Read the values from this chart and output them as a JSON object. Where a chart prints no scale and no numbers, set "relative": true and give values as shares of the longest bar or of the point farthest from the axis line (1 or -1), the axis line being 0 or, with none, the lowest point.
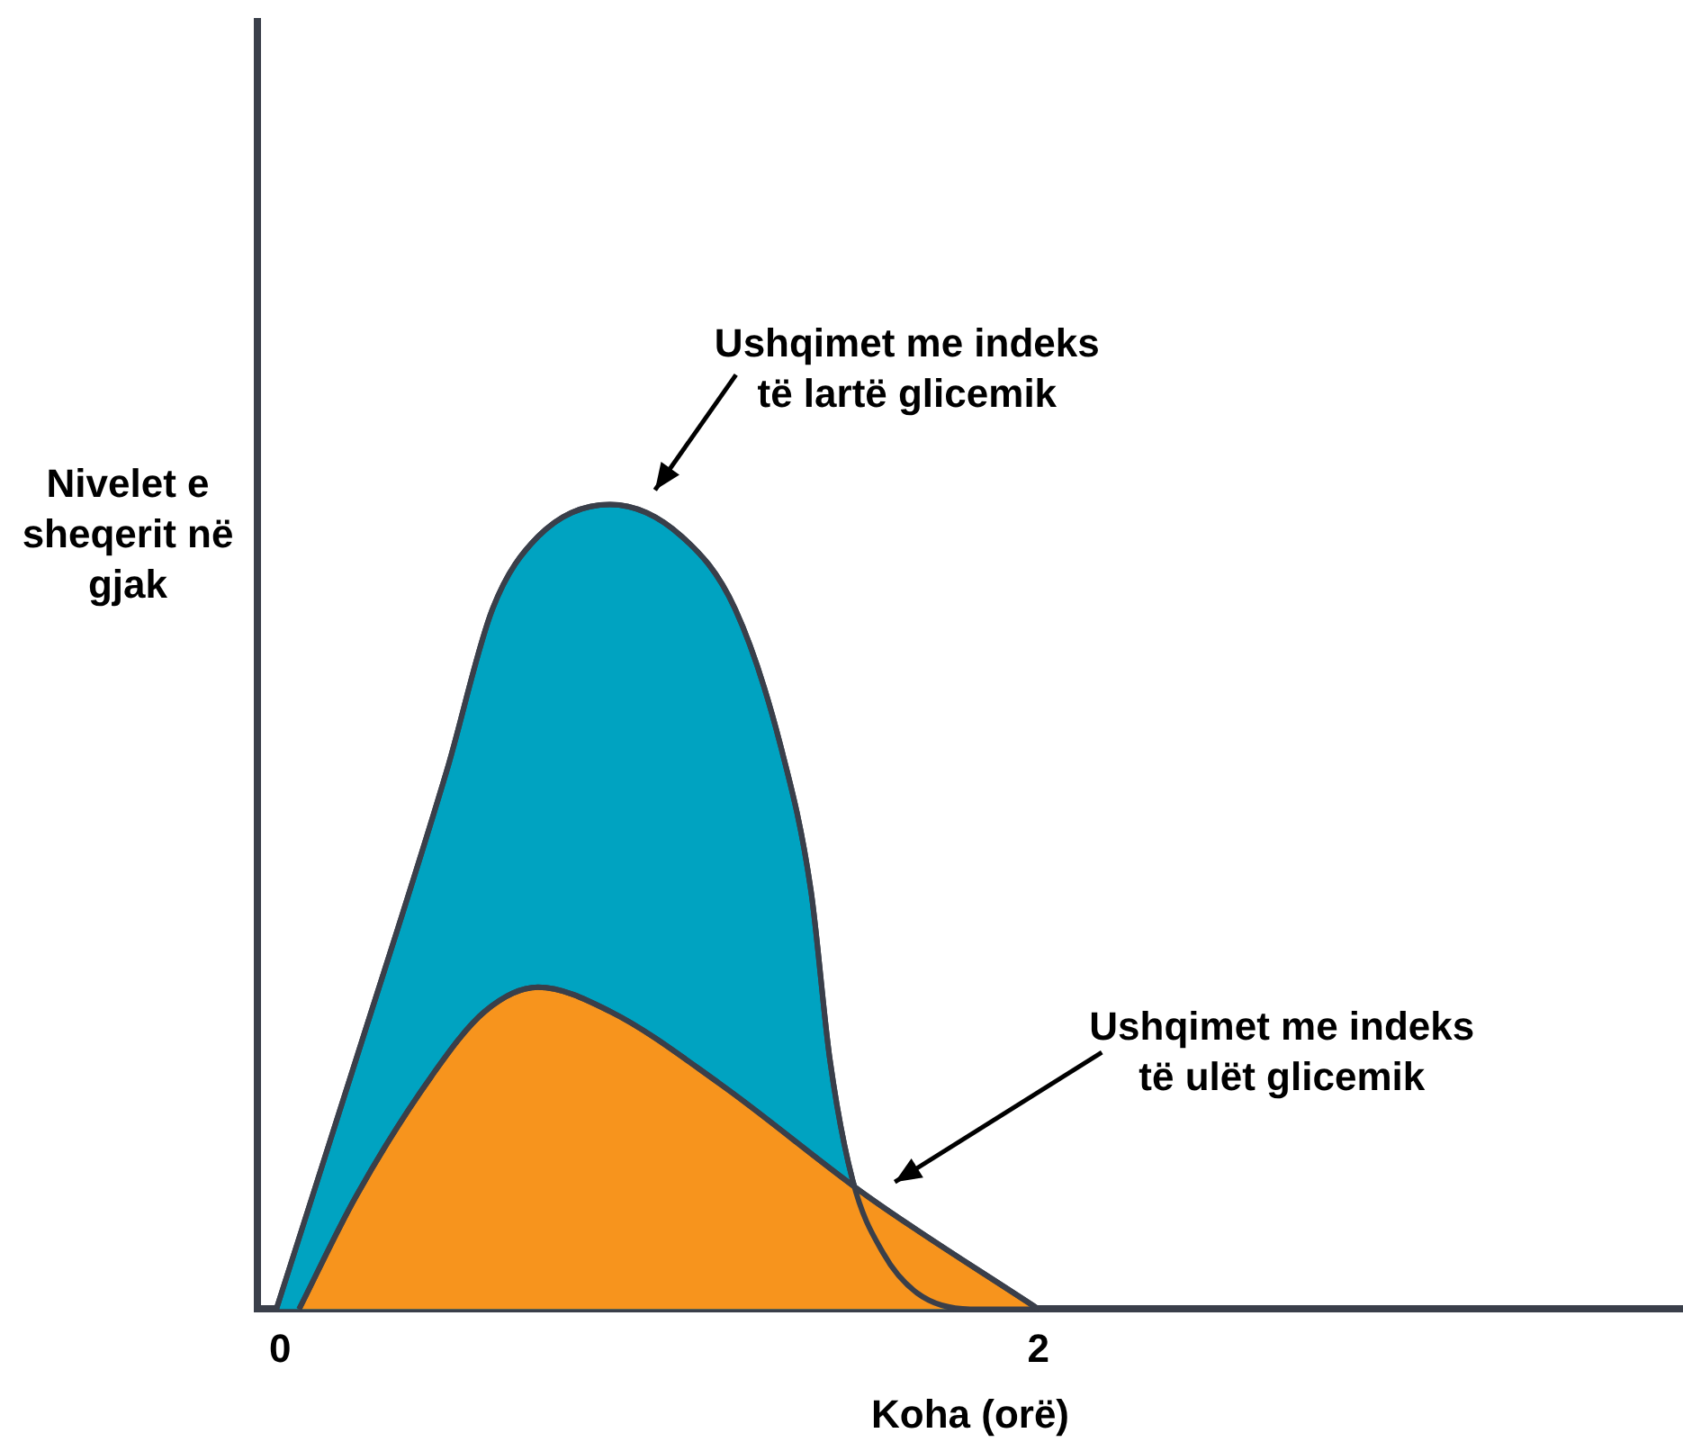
{
  "chart_data": {
    "type": "area",
    "xlabel": "Koha (orë)",
    "ylabel": "Nivelet e sheqerit në gjak",
    "relative": true,
    "xlim": [
      -0.06,
      3.7
    ],
    "xticks": [
      0,
      2
    ],
    "grid": false,
    "legend": false,
    "marker": "none",
    "series": [
      {
        "name": "Ushqimet me indeks të lartë glicemik",
        "color": "#00a3c1",
        "x": [
          -0.01,
          0.2,
          0.44,
          0.56,
          0.68,
          0.87,
          1.06,
          1.2,
          1.32,
          1.4,
          1.45,
          1.51,
          1.59,
          1.68,
          1.82,
          2.0
        ],
        "values": [
          0,
          0.31,
          0.67,
          0.87,
          0.96,
          1.0,
          0.96,
          0.87,
          0.7,
          0.52,
          0.31,
          0.16,
          0.07,
          0.02,
          0.0,
          0
        ]
      },
      {
        "name": "Ushqimet me indeks të ulët glicemik",
        "color": "#f7941d",
        "x": [
          0.05,
          0.2,
          0.4,
          0.54,
          0.68,
          0.87,
          1.16,
          1.55,
          2.0
        ],
        "values": [
          0,
          0.14,
          0.29,
          0.37,
          0.4,
          0.37,
          0.28,
          0.14,
          0
        ]
      }
    ]
  }
}
